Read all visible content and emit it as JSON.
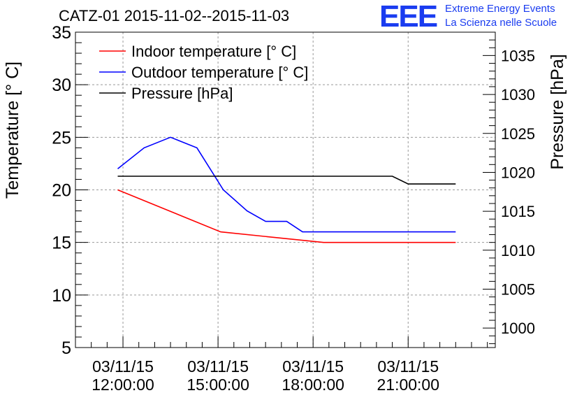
{
  "header": {
    "title": "CATZ-01 2015-11-02--2015-11-03",
    "logo_text": "EEE",
    "logo_line1": "Extreme Energy Events",
    "logo_line2": "La Scienza nelle Scuole"
  },
  "colors": {
    "indoor": "#ff0000",
    "outdoor": "#0000ff",
    "pressure": "#000000",
    "logo": "#1a3cf0"
  },
  "chart_data": {
    "type": "line",
    "title": "CATZ-01 2015-11-02--2015-11-03",
    "xlabel": "",
    "ylabel": "Temperature [° C]",
    "y2label": "Pressure [hPa]",
    "xlim": [
      "2015-11-03 10:30",
      "2015-11-03 23:45"
    ],
    "ylim": [
      5,
      35
    ],
    "y2lim": [
      997.5,
      1038
    ],
    "grid": true,
    "legend_position": "top-left",
    "x_ticks": [
      {
        "x": "2015-11-03 12:00",
        "label_date": "03/11/15",
        "label_time": "12:00:00"
      },
      {
        "x": "2015-11-03 15:00",
        "label_date": "03/11/15",
        "label_time": "15:00:00"
      },
      {
        "x": "2015-11-03 18:00",
        "label_date": "03/11/15",
        "label_time": "18:00:00"
      },
      {
        "x": "2015-11-03 21:00",
        "label_date": "03/11/15",
        "label_time": "21:00:00"
      }
    ],
    "y_ticks": [
      5,
      10,
      15,
      20,
      25,
      30,
      35
    ],
    "y2_ticks": [
      1000,
      1005,
      1010,
      1015,
      1020,
      1025,
      1030,
      1035
    ],
    "series": [
      {
        "name": "Indoor temperature [° C]",
        "axis": "left",
        "x": [
          "2015-11-03 11:50",
          "2015-11-03 15:05",
          "2015-11-03 18:20",
          "2015-11-03 22:30"
        ],
        "y": [
          20,
          16,
          15,
          15
        ]
      },
      {
        "name": "Outdoor temperature [° C]",
        "axis": "left",
        "x": [
          "2015-11-03 11:50",
          "2015-11-03 12:40",
          "2015-11-03 13:30",
          "2015-11-03 14:20",
          "2015-11-03 15:10",
          "2015-11-03 15:55",
          "2015-11-03 16:30",
          "2015-11-03 17:10",
          "2015-11-03 17:40",
          "2015-11-03 22:30"
        ],
        "y": [
          22,
          24,
          25,
          24,
          20,
          18,
          17,
          17,
          16,
          16
        ]
      },
      {
        "name": "Pressure [hPa]",
        "axis": "right",
        "x": [
          "2015-11-03 11:50",
          "2015-11-03 20:30",
          "2015-11-03 21:00",
          "2015-11-03 22:30"
        ],
        "y": [
          1019.5,
          1019.5,
          1018.5,
          1018.5
        ]
      }
    ]
  }
}
